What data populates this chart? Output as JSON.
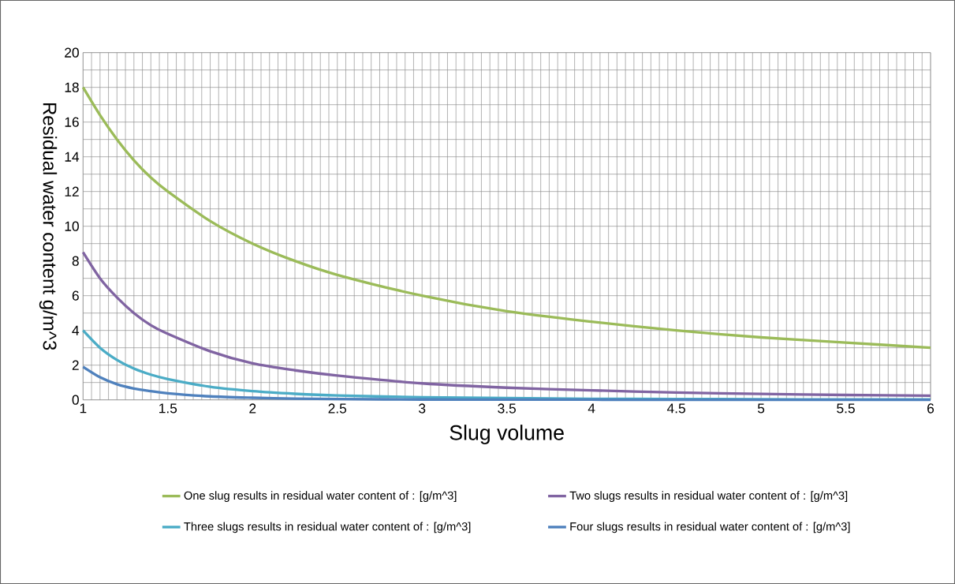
{
  "chart_data": {
    "type": "line",
    "xlabel": "Slug volume",
    "ylabel": "Residual water content g/m^3",
    "x": [
      1,
      1.1,
      1.2,
      1.3,
      1.4,
      1.5,
      1.75,
      2,
      2.25,
      2.5,
      3,
      3.5,
      4,
      4.5,
      5,
      5.5,
      6
    ],
    "series": [
      {
        "name": "One slug results in residual water content of : [g/m^3]",
        "color": "#9bbb59",
        "values": [
          18,
          16.4,
          15,
          13.8,
          12.8,
          12,
          10.3,
          9,
          8,
          7.2,
          6,
          5.1,
          4.5,
          4,
          3.6,
          3.3,
          3
        ]
      },
      {
        "name": "Two slugs results in residual water content of : [g/m^3]",
        "color": "#8064a2",
        "values": [
          8.5,
          7,
          5.9,
          5,
          4.3,
          3.8,
          2.8,
          2.1,
          1.7,
          1.4,
          0.95,
          0.7,
          0.55,
          0.42,
          0.34,
          0.28,
          0.24
        ]
      },
      {
        "name": "Three slugs results in residual water content of : [g/m^3]",
        "color": "#4bacc6",
        "values": [
          4,
          3,
          2.3,
          1.8,
          1.45,
          1.2,
          0.75,
          0.5,
          0.35,
          0.25,
          0.15,
          0.1,
          0.06,
          0.05,
          0.03,
          0.02,
          0.02
        ]
      },
      {
        "name": "Four slugs results in residual water content of : [g/m^3]",
        "color": "#4f81bd",
        "values": [
          1.9,
          1.3,
          0.9,
          0.65,
          0.5,
          0.38,
          0.2,
          0.12,
          0.07,
          0.05,
          0.02,
          0.01,
          0.01,
          0,
          0,
          0,
          0
        ]
      }
    ],
    "xlim": [
      1,
      6
    ],
    "ylim": [
      0,
      20
    ],
    "xticks": [
      1,
      1.5,
      2,
      2.5,
      3,
      3.5,
      4,
      4.5,
      5,
      5.5,
      6
    ],
    "yticks": [
      0,
      2,
      4,
      6,
      8,
      10,
      12,
      14,
      16,
      18,
      20
    ],
    "grid": true,
    "legend": "bottom",
    "marker": "none",
    "line_style": "solid"
  }
}
